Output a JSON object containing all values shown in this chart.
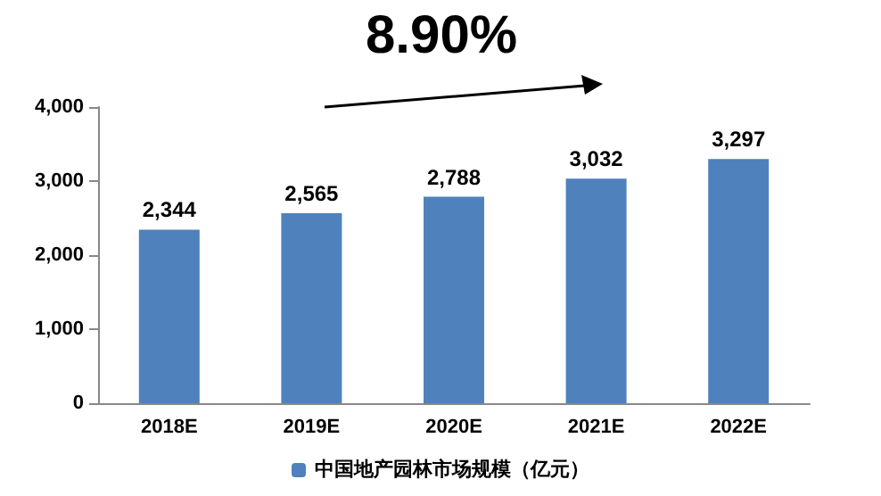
{
  "chart_data": {
    "type": "bar",
    "categories": [
      "2018E",
      "2019E",
      "2020E",
      "2021E",
      "2022E"
    ],
    "series": [
      {
        "name": "中国地产园林市场规模（亿元）",
        "color": "#4f81bd",
        "values": [
          2344,
          2565,
          2788,
          3032,
          3297
        ],
        "value_labels": [
          "2,344",
          "2,565",
          "2,788",
          "3,032",
          "3,297"
        ]
      }
    ],
    "ylim": [
      0,
      4000
    ],
    "yticks": [
      {
        "value": 0,
        "label": "0"
      },
      {
        "value": 1000,
        "label": "1,000"
      },
      {
        "value": 2000,
        "label": "2,000"
      },
      {
        "value": 3000,
        "label": "3,000"
      },
      {
        "value": 4000,
        "label": "4,000"
      }
    ],
    "grid": false,
    "legend": "bottom",
    "annotations": [
      "8.90%"
    ]
  }
}
